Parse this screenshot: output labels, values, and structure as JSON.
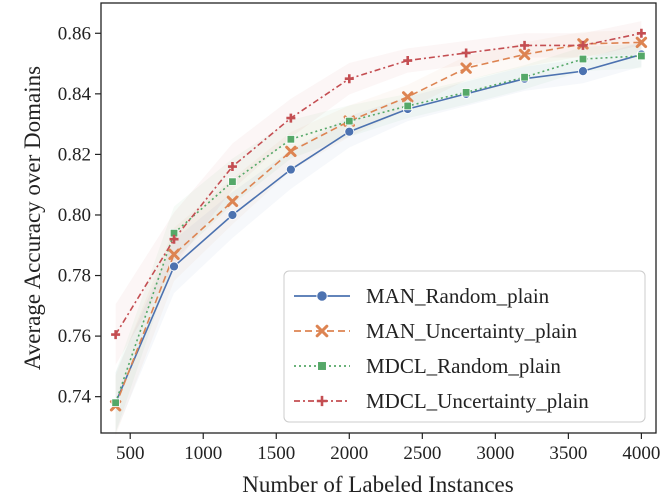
{
  "chart_data": {
    "type": "line",
    "xlabel": "Number of Labeled Instances",
    "ylabel": "Average Accuracy over Domains",
    "xlim": [
      300,
      4100
    ],
    "ylim": [
      0.728,
      0.87
    ],
    "xticks": [
      500,
      1000,
      1500,
      2000,
      2500,
      3000,
      3500,
      4000
    ],
    "yticks": [
      0.74,
      0.76,
      0.78,
      0.8,
      0.82,
      0.84,
      0.86
    ],
    "x": [
      400,
      800,
      1200,
      1600,
      2000,
      2400,
      2800,
      3200,
      3600,
      4000
    ],
    "grid": false,
    "legend_position": "bottom-right",
    "series": [
      {
        "name": "MAN_Random_plain",
        "color": "#4c72b0",
        "linestyle": "solid",
        "marker": "circle",
        "values": [
          0.738,
          0.783,
          0.8,
          0.815,
          0.8275,
          0.835,
          0.84,
          0.845,
          0.8475,
          0.853
        ]
      },
      {
        "name": "MAN_Uncertainty_plain",
        "color": "#dd8452",
        "linestyle": "dashed",
        "marker": "x",
        "values": [
          0.737,
          0.787,
          0.8045,
          0.821,
          0.831,
          0.839,
          0.8485,
          0.853,
          0.8565,
          0.857
        ]
      },
      {
        "name": "MDCL_Random_plain",
        "color": "#55a868",
        "linestyle": "dotted",
        "marker": "square",
        "values": [
          0.738,
          0.794,
          0.811,
          0.825,
          0.831,
          0.836,
          0.8405,
          0.8455,
          0.8515,
          0.8525
        ]
      },
      {
        "name": "MDCL_Uncertainty_plain",
        "color": "#c44e52",
        "linestyle": "dashdot",
        "marker": "plus",
        "values": [
          0.7605,
          0.792,
          0.816,
          0.832,
          0.845,
          0.851,
          0.8535,
          0.856,
          0.856,
          0.86
        ]
      }
    ]
  }
}
